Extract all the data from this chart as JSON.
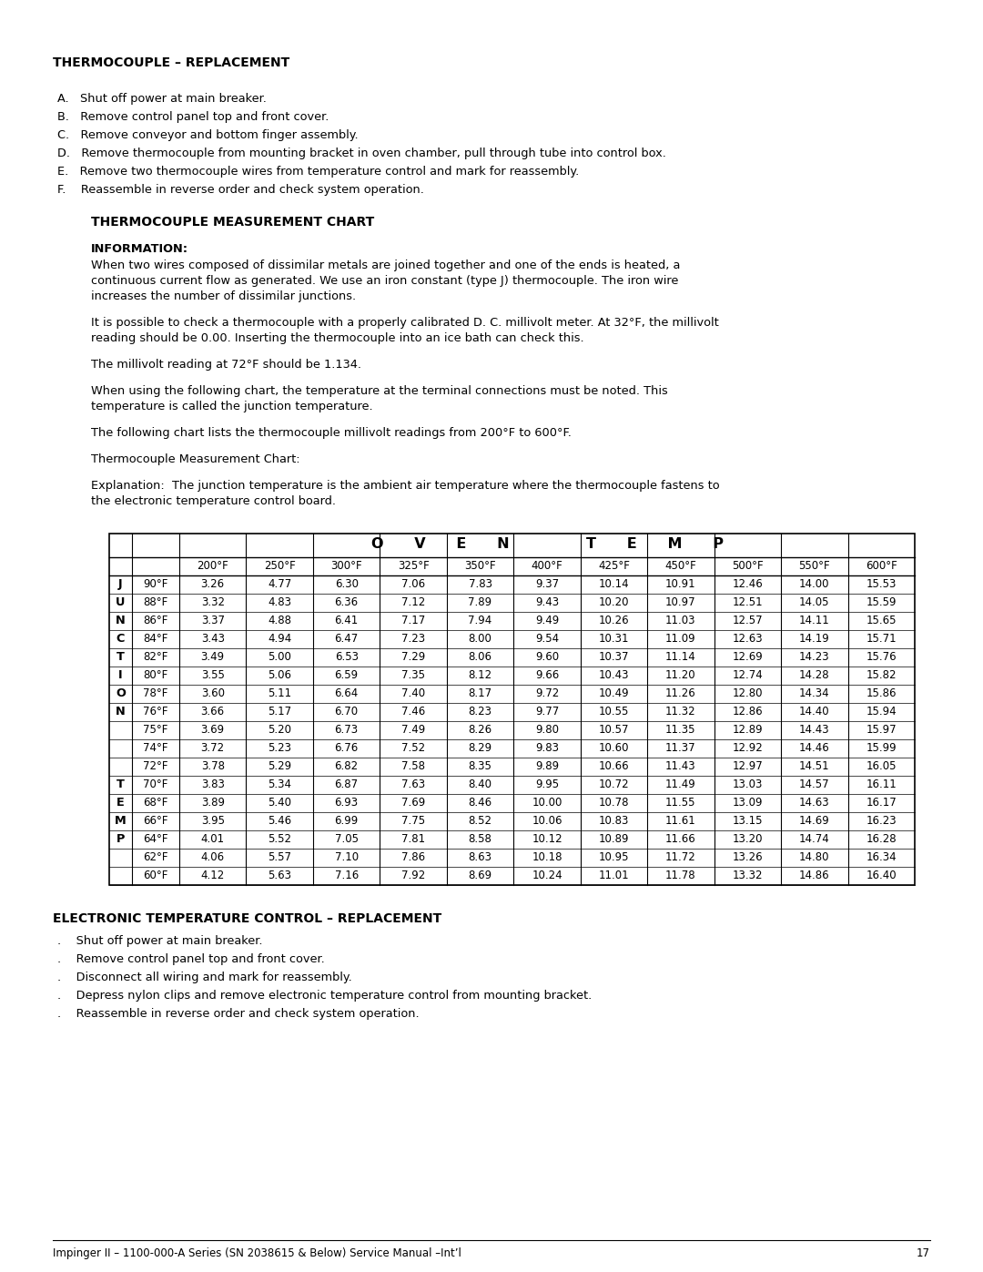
{
  "title_replacement": "THERMOCOUPLE – REPLACEMENT",
  "steps": [
    "A.   Shut off power at main breaker.",
    "B.   Remove control panel top and front cover.",
    "C.   Remove conveyor and bottom finger assembly.",
    "D.   Remove thermocouple from mounting bracket in oven chamber, pull through tube into control box.",
    "E.   Remove two thermocouple wires from temperature control and mark for reassembly.",
    "F.    Reassemble in reverse order and check system operation."
  ],
  "chart_title": "THERMOCOUPLE MEASUREMENT CHART",
  "info_label": "INFORMATION:",
  "info_lines1": [
    "When two wires composed of dissimilar metals are joined together and one of the ends is heated, a",
    "continuous current flow as generated. We use an iron constant (type J) thermocouple. The iron wire",
    "increases the number of dissimilar junctions."
  ],
  "info_lines2": [
    "It is possible to check a thermocouple with a properly calibrated D. C. millivolt meter. At 32°F, the millivolt",
    "reading should be 0.00. Inserting the thermocouple into an ice bath can check this."
  ],
  "info_text3": "The millivolt reading at 72°F should be 1.134.",
  "info_lines4": [
    "When using the following chart, the temperature at the terminal connections must be noted. This",
    "temperature is called the junction temperature."
  ],
  "info_text5": "The following chart lists the thermocouple millivolt readings from 200°F to 600°F.",
  "info_text6": "Thermocouple Measurement Chart:",
  "info_lines7": [
    "Explanation:  The junction temperature is the ambient air temperature where the thermocouple fastens to",
    "the electronic temperature control board."
  ],
  "col_headers": [
    "200°F",
    "250°F",
    "300°F",
    "325°F",
    "350°F",
    "400°F",
    "425°F",
    "450°F",
    "500°F",
    "550°F",
    "600°F"
  ],
  "table_data": [
    [
      "90°F",
      "3.26",
      "4.77",
      "6.30",
      "7.06",
      "7.83",
      "9.37",
      "10.14",
      "10.91",
      "12.46",
      "14.00",
      "15.53"
    ],
    [
      "88°F",
      "3.32",
      "4.83",
      "6.36",
      "7.12",
      "7.89",
      "9.43",
      "10.20",
      "10.97",
      "12.51",
      "14.05",
      "15.59"
    ],
    [
      "86°F",
      "3.37",
      "4.88",
      "6.41",
      "7.17",
      "7.94",
      "9.49",
      "10.26",
      "11.03",
      "12.57",
      "14.11",
      "15.65"
    ],
    [
      "84°F",
      "3.43",
      "4.94",
      "6.47",
      "7.23",
      "8.00",
      "9.54",
      "10.31",
      "11.09",
      "12.63",
      "14.19",
      "15.71"
    ],
    [
      "82°F",
      "3.49",
      "5.00",
      "6.53",
      "7.29",
      "8.06",
      "9.60",
      "10.37",
      "11.14",
      "12.69",
      "14.23",
      "15.76"
    ],
    [
      "80°F",
      "3.55",
      "5.06",
      "6.59",
      "7.35",
      "8.12",
      "9.66",
      "10.43",
      "11.20",
      "12.74",
      "14.28",
      "15.82"
    ],
    [
      "78°F",
      "3.60",
      "5.11",
      "6.64",
      "7.40",
      "8.17",
      "9.72",
      "10.49",
      "11.26",
      "12.80",
      "14.34",
      "15.86"
    ],
    [
      "76°F",
      "3.66",
      "5.17",
      "6.70",
      "7.46",
      "8.23",
      "9.77",
      "10.55",
      "11.32",
      "12.86",
      "14.40",
      "15.94"
    ],
    [
      "75°F",
      "3.69",
      "5.20",
      "6.73",
      "7.49",
      "8.26",
      "9.80",
      "10.57",
      "11.35",
      "12.89",
      "14.43",
      "15.97"
    ],
    [
      "74°F",
      "3.72",
      "5.23",
      "6.76",
      "7.52",
      "8.29",
      "9.83",
      "10.60",
      "11.37",
      "12.92",
      "14.46",
      "15.99"
    ],
    [
      "72°F",
      "3.78",
      "5.29",
      "6.82",
      "7.58",
      "8.35",
      "9.89",
      "10.66",
      "11.43",
      "12.97",
      "14.51",
      "16.05"
    ],
    [
      "70°F",
      "3.83",
      "5.34",
      "6.87",
      "7.63",
      "8.40",
      "9.95",
      "10.72",
      "11.49",
      "13.03",
      "14.57",
      "16.11"
    ],
    [
      "68°F",
      "3.89",
      "5.40",
      "6.93",
      "7.69",
      "8.46",
      "10.00",
      "10.78",
      "11.55",
      "13.09",
      "14.63",
      "16.17"
    ],
    [
      "66°F",
      "3.95",
      "5.46",
      "6.99",
      "7.75",
      "8.52",
      "10.06",
      "10.83",
      "11.61",
      "13.15",
      "14.69",
      "16.23"
    ],
    [
      "64°F",
      "4.01",
      "5.52",
      "7.05",
      "7.81",
      "8.58",
      "10.12",
      "10.89",
      "11.66",
      "13.20",
      "14.74",
      "16.28"
    ],
    [
      "62°F",
      "4.06",
      "5.57",
      "7.10",
      "7.86",
      "8.63",
      "10.18",
      "10.95",
      "11.72",
      "13.26",
      "14.80",
      "16.34"
    ],
    [
      "60°F",
      "4.12",
      "5.63",
      "7.16",
      "7.92",
      "8.69",
      "10.24",
      "11.01",
      "11.78",
      "13.32",
      "14.86",
      "16.40"
    ]
  ],
  "junction_col": [
    "J",
    "U",
    "N",
    "C",
    "T",
    "I",
    "O",
    "N",
    "",
    "",
    "",
    "T",
    "E",
    "M",
    "P",
    "",
    ""
  ],
  "elec_title": "ELECTRONIC TEMPERATURE CONTROL – REPLACEMENT",
  "elec_steps": [
    ".    Shut off power at main breaker.",
    ".    Remove control panel top and front cover.",
    ".    Disconnect all wiring and mark for reassembly.",
    ".    Depress nylon clips and remove electronic temperature control from mounting bracket.",
    ".    Reassemble in reverse order and check system operation."
  ],
  "footer": "Impinger II – 1100-000-A Series (SN 2038615 & Below) Service Manual –Int’l",
  "footer_page": "17"
}
